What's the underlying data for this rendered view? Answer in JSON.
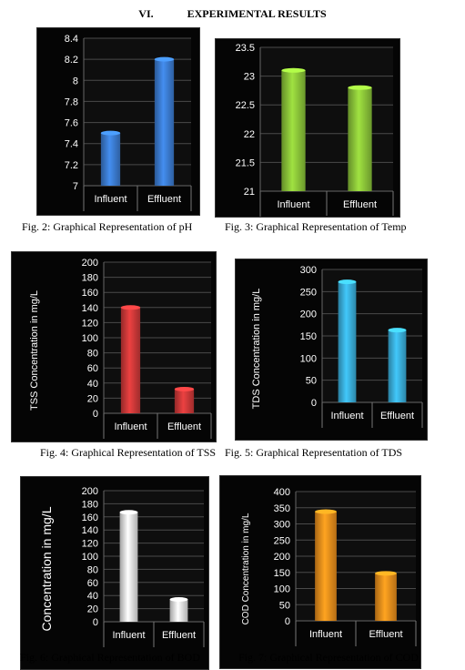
{
  "section": {
    "number": "VI.",
    "title": "EXPERIMENTAL RESULTS"
  },
  "figures": [
    {
      "caption": "Fig. 2: Graphical Representation of pH"
    },
    {
      "caption": "Fig. 3: Graphical Representation of Temp"
    },
    {
      "caption": "Fig. 4: Graphical Representation of TSS"
    },
    {
      "caption": "Fig. 5: Graphical Representation of TDS"
    },
    {
      "caption": "Fig. 6: Graphical Representation of BOD"
    },
    {
      "caption": "Fig. 7: Graphical Representation of COD"
    }
  ],
  "chart_data": [
    {
      "type": "bar",
      "categories": [
        "Influent",
        "Effluent"
      ],
      "values": [
        7.5,
        8.2
      ],
      "ylabel": "",
      "ylim": [
        7,
        8.4
      ],
      "yticks": [
        "7",
        "7.2",
        "7.4",
        "7.6",
        "7.8",
        "8",
        "8.2",
        "8.4"
      ],
      "grid": true,
      "bar_color": "#3d7fd6"
    },
    {
      "type": "bar",
      "categories": [
        "Influent",
        "Effluent"
      ],
      "values": [
        23.1,
        22.8
      ],
      "ylabel": "",
      "ylim": [
        21,
        23.5
      ],
      "yticks": [
        "21",
        "21.5",
        "22",
        "22.5",
        "23",
        "23.5"
      ],
      "grid": true,
      "bar_color": "#8fca3a"
    },
    {
      "type": "bar",
      "categories": [
        "Influent",
        "Effluent"
      ],
      "values": [
        140,
        32
      ],
      "ylabel": "TSS Concentration in mg/L",
      "ylim": [
        0,
        200
      ],
      "yticks": [
        "0",
        "20",
        "40",
        "60",
        "80",
        "100",
        "120",
        "140",
        "160",
        "180",
        "200"
      ],
      "grid": true,
      "bar_color": "#d33a3a"
    },
    {
      "type": "bar",
      "categories": [
        "Influent",
        "Effluent"
      ],
      "values": [
        272,
        163
      ],
      "ylabel": "TDS Concentration in mg/L",
      "ylim": [
        0,
        300
      ],
      "yticks": [
        "0",
        "50",
        "100",
        "150",
        "200",
        "250",
        "300"
      ],
      "grid": true,
      "bar_color": "#3bb3e0"
    },
    {
      "type": "bar",
      "categories": [
        "Influent",
        "Effluent"
      ],
      "values": [
        167,
        34
      ],
      "ylabel": "Concentration in mg/L",
      "ylim": [
        0,
        200
      ],
      "yticks": [
        "0",
        "20",
        "40",
        "60",
        "80",
        "100",
        "120",
        "140",
        "160",
        "180",
        "200"
      ],
      "grid": true,
      "bar_color": "#e8e8e8"
    },
    {
      "type": "bar",
      "categories": [
        "Influent",
        "Effluent"
      ],
      "values": [
        338,
        147
      ],
      "ylabel": "COD Concentration in mg/L",
      "ylim": [
        0,
        400
      ],
      "yticks": [
        "0",
        "50",
        "100",
        "150",
        "200",
        "250",
        "300",
        "350",
        "400"
      ],
      "grid": true,
      "bar_color": "#f2921d"
    }
  ]
}
